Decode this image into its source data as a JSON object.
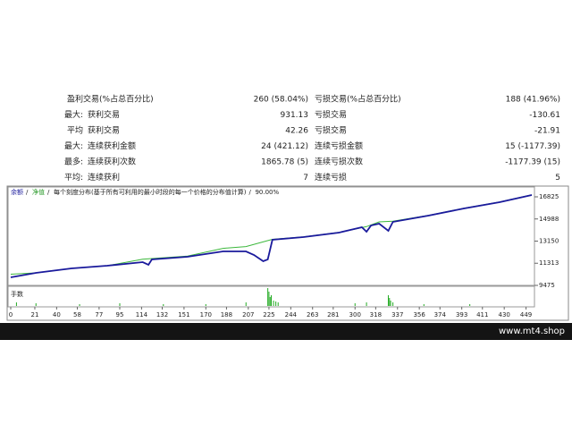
{
  "report": {
    "rows": [
      [
        "盈利交易(%占总百分比)",
        "260 (58.04%)",
        "亏损交易(%占总百分比)",
        "188 (41.96%)"
      ],
      [
        "最大:",
        "获利交易",
        "931.13",
        "亏损交易",
        "-130.61"
      ],
      [
        "平均",
        "获利交易",
        "42.26",
        "亏损交易",
        "-21.91"
      ],
      [
        "最大:",
        "连续获利金额",
        "24 (421.12)",
        "连续亏损金额",
        "15 (-1177.39)"
      ],
      [
        "最多:",
        "连续获利次数",
        "1865.78 (5)",
        "连续亏损次数",
        "-1177.39 (15)"
      ],
      [
        "平均:",
        "连续获利",
        "7",
        "连续亏损",
        "5"
      ]
    ]
  },
  "chart": {
    "legend": [
      "余额",
      "净值",
      "每个刻度分布(基于所有可利用的最小时段的每一个价格的分布值计算)",
      "90.00%"
    ],
    "volume_label": "手数",
    "xlim": [
      0,
      454
    ],
    "xticks": [
      0,
      21,
      40,
      58,
      77,
      95,
      114,
      132,
      151,
      170,
      188,
      207,
      225,
      244,
      263,
      281,
      300,
      318,
      337,
      356,
      374,
      393,
      411,
      430,
      449
    ],
    "ylim": [
      9400,
      17420
    ],
    "yticks": [
      9475,
      11313,
      13150,
      14988,
      16825
    ],
    "equity": {
      "color": "#1a1a9c",
      "x": [
        0,
        22,
        53,
        84,
        115,
        120,
        123,
        154,
        185,
        205,
        212,
        220,
        224,
        228,
        255,
        286,
        306,
        310,
        314,
        321,
        329,
        333,
        364,
        395,
        426,
        454
      ],
      "values": [
        10143,
        10514,
        10885,
        11108,
        11405,
        11180,
        11628,
        11850,
        12296,
        12296,
        11999,
        11480,
        11628,
        13261,
        13484,
        13855,
        14300,
        13930,
        14450,
        14597,
        14003,
        14745,
        15266,
        15860,
        16379,
        16973
      ]
    },
    "balance": {
      "color": "#3cb83c",
      "x": [
        0,
        22,
        53,
        84,
        115,
        123,
        154,
        185,
        205,
        228,
        255,
        286,
        310,
        321,
        333,
        364,
        395,
        426,
        454
      ],
      "values": [
        10400,
        10514,
        10885,
        11108,
        11650,
        11700,
        11900,
        12550,
        12700,
        13300,
        13500,
        13870,
        14350,
        14750,
        14800,
        15280,
        15880,
        16400,
        16990
      ]
    },
    "volume": {
      "color": "#22aa22",
      "x": [
        5,
        22,
        60,
        95,
        133,
        170,
        205,
        224,
        225,
        226,
        227,
        229,
        231,
        233,
        300,
        310,
        329,
        330,
        331,
        333,
        360,
        400
      ],
      "values": [
        0.2,
        0.15,
        0.1,
        0.15,
        0.1,
        0.1,
        0.2,
        1.0,
        0.8,
        0.5,
        0.6,
        0.3,
        0.25,
        0.2,
        0.15,
        0.2,
        0.6,
        0.45,
        0.3,
        0.2,
        0.1,
        0.1
      ],
      "vlim": [
        0,
        1
      ]
    }
  },
  "footer": {
    "site": "www.mt4.shop"
  }
}
